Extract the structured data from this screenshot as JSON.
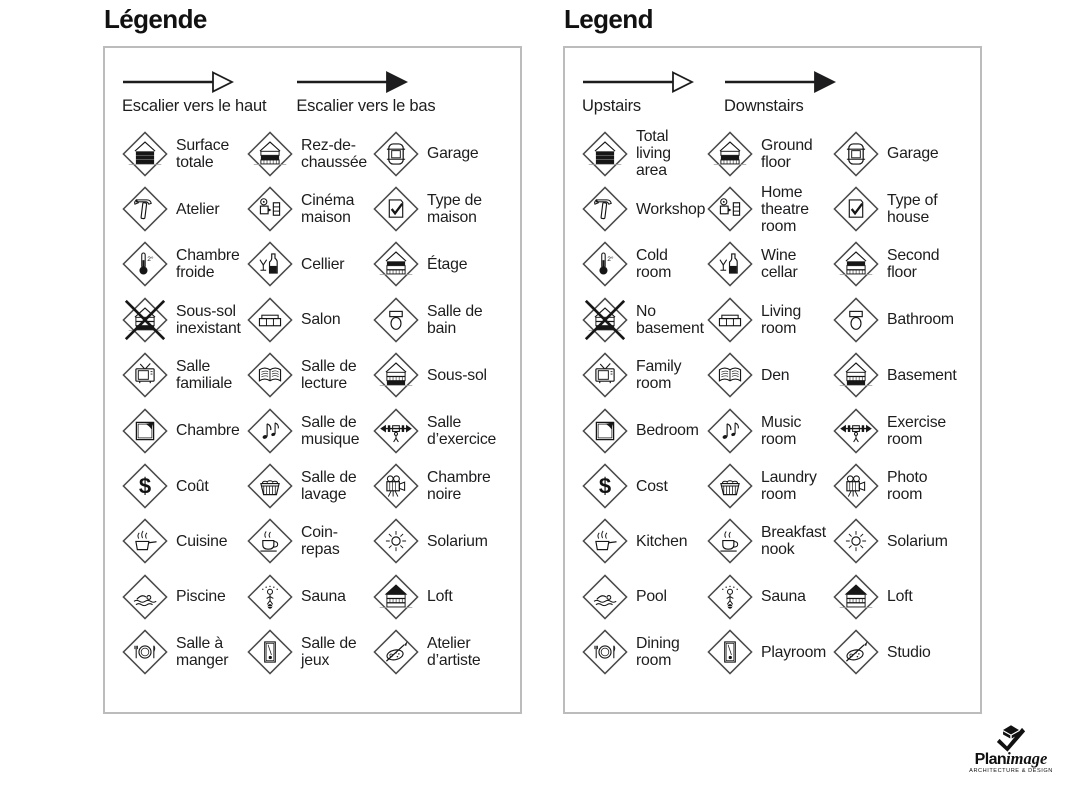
{
  "colors": {
    "background": "#ffffff",
    "text": "#1d1d1f",
    "icon_stroke": "#161616",
    "panel_border": "#bcbcbc"
  },
  "panels": [
    {
      "title": "Légende",
      "arrows": [
        {
          "icon": "arrow-upstairs",
          "style": "outline",
          "label": "Escalier vers le haut"
        },
        {
          "icon": "arrow-downstairs",
          "style": "filled",
          "label": "Escalier vers le bas"
        }
      ],
      "items": [
        {
          "icon": "total-living-area",
          "label": "Surface\ntotale"
        },
        {
          "icon": "ground-floor",
          "label": "Rez-de-\nchaussée"
        },
        {
          "icon": "garage",
          "label": "Garage"
        },
        {
          "icon": "workshop",
          "label": "Atelier"
        },
        {
          "icon": "home-theatre",
          "label": "Cinéma\nmaison"
        },
        {
          "icon": "type-of-house",
          "label": "Type de\nmaison"
        },
        {
          "icon": "cold-room",
          "label": "Chambre\nfroide"
        },
        {
          "icon": "wine-cellar",
          "label": "Cellier"
        },
        {
          "icon": "second-floor",
          "label": "Étage"
        },
        {
          "icon": "no-basement",
          "label": "Sous-sol\ninexistant"
        },
        {
          "icon": "living-room",
          "label": "Salon"
        },
        {
          "icon": "bathroom",
          "label": "Salle de\nbain"
        },
        {
          "icon": "family-room",
          "label": "Salle\nfamiliale"
        },
        {
          "icon": "den",
          "label": "Salle de\nlecture"
        },
        {
          "icon": "basement",
          "label": "Sous-sol"
        },
        {
          "icon": "bedroom",
          "label": "Chambre"
        },
        {
          "icon": "music-room",
          "label": "Salle de\nmusique"
        },
        {
          "icon": "exercise-room",
          "label": "Salle\nd’exercice"
        },
        {
          "icon": "cost",
          "label": "Coût"
        },
        {
          "icon": "laundry-room",
          "label": "Salle de\nlavage"
        },
        {
          "icon": "photo-room",
          "label": "Chambre\nnoire"
        },
        {
          "icon": "kitchen",
          "label": "Cuisine"
        },
        {
          "icon": "breakfast-nook",
          "label": "Coin-\nrepas"
        },
        {
          "icon": "solarium",
          "label": "Solarium"
        },
        {
          "icon": "pool",
          "label": "Piscine"
        },
        {
          "icon": "sauna",
          "label": "Sauna"
        },
        {
          "icon": "loft",
          "label": "Loft"
        },
        {
          "icon": "dining-room",
          "label": "Salle à\nmanger"
        },
        {
          "icon": "playroom",
          "label": "Salle de\njeux"
        },
        {
          "icon": "studio",
          "label": "Atelier\nd’artiste"
        }
      ]
    },
    {
      "title": "Legend",
      "arrows": [
        {
          "icon": "arrow-upstairs",
          "style": "outline",
          "label": "Upstairs"
        },
        {
          "icon": "arrow-downstairs",
          "style": "filled",
          "label": "Downstairs"
        }
      ],
      "items": [
        {
          "icon": "total-living-area",
          "label": "Total\nliving\narea"
        },
        {
          "icon": "ground-floor",
          "label": "Ground\nfloor"
        },
        {
          "icon": "garage",
          "label": "Garage"
        },
        {
          "icon": "workshop",
          "label": "Workshop"
        },
        {
          "icon": "home-theatre",
          "label": "Home\ntheatre\nroom"
        },
        {
          "icon": "type-of-house",
          "label": "Type of\nhouse"
        },
        {
          "icon": "cold-room",
          "label": "Cold\nroom"
        },
        {
          "icon": "wine-cellar",
          "label": "Wine\ncellar"
        },
        {
          "icon": "second-floor",
          "label": "Second\nfloor"
        },
        {
          "icon": "no-basement",
          "label": "No\nbasement"
        },
        {
          "icon": "living-room",
          "label": "Living\nroom"
        },
        {
          "icon": "bathroom",
          "label": "Bathroom"
        },
        {
          "icon": "family-room",
          "label": "Family\nroom"
        },
        {
          "icon": "den",
          "label": "Den"
        },
        {
          "icon": "basement",
          "label": "Basement"
        },
        {
          "icon": "bedroom",
          "label": "Bedroom"
        },
        {
          "icon": "music-room",
          "label": "Music\nroom"
        },
        {
          "icon": "exercise-room",
          "label": "Exercise\nroom"
        },
        {
          "icon": "cost",
          "label": "Cost"
        },
        {
          "icon": "laundry-room",
          "label": "Laundry\nroom"
        },
        {
          "icon": "photo-room",
          "label": "Photo\nroom"
        },
        {
          "icon": "kitchen",
          "label": "Kitchen"
        },
        {
          "icon": "breakfast-nook",
          "label": "Breakfast\nnook"
        },
        {
          "icon": "solarium",
          "label": "Solarium"
        },
        {
          "icon": "pool",
          "label": "Pool"
        },
        {
          "icon": "sauna",
          "label": "Sauna"
        },
        {
          "icon": "loft",
          "label": "Loft"
        },
        {
          "icon": "dining-room",
          "label": "Dining\nroom"
        },
        {
          "icon": "playroom",
          "label": "Playroom"
        },
        {
          "icon": "studio",
          "label": "Studio"
        }
      ]
    }
  ],
  "logo": {
    "icon": "planimage-mark",
    "brand_bold": "Plan",
    "brand_italic": "image",
    "tagline": "ARCHITECTURE & DESIGN"
  }
}
